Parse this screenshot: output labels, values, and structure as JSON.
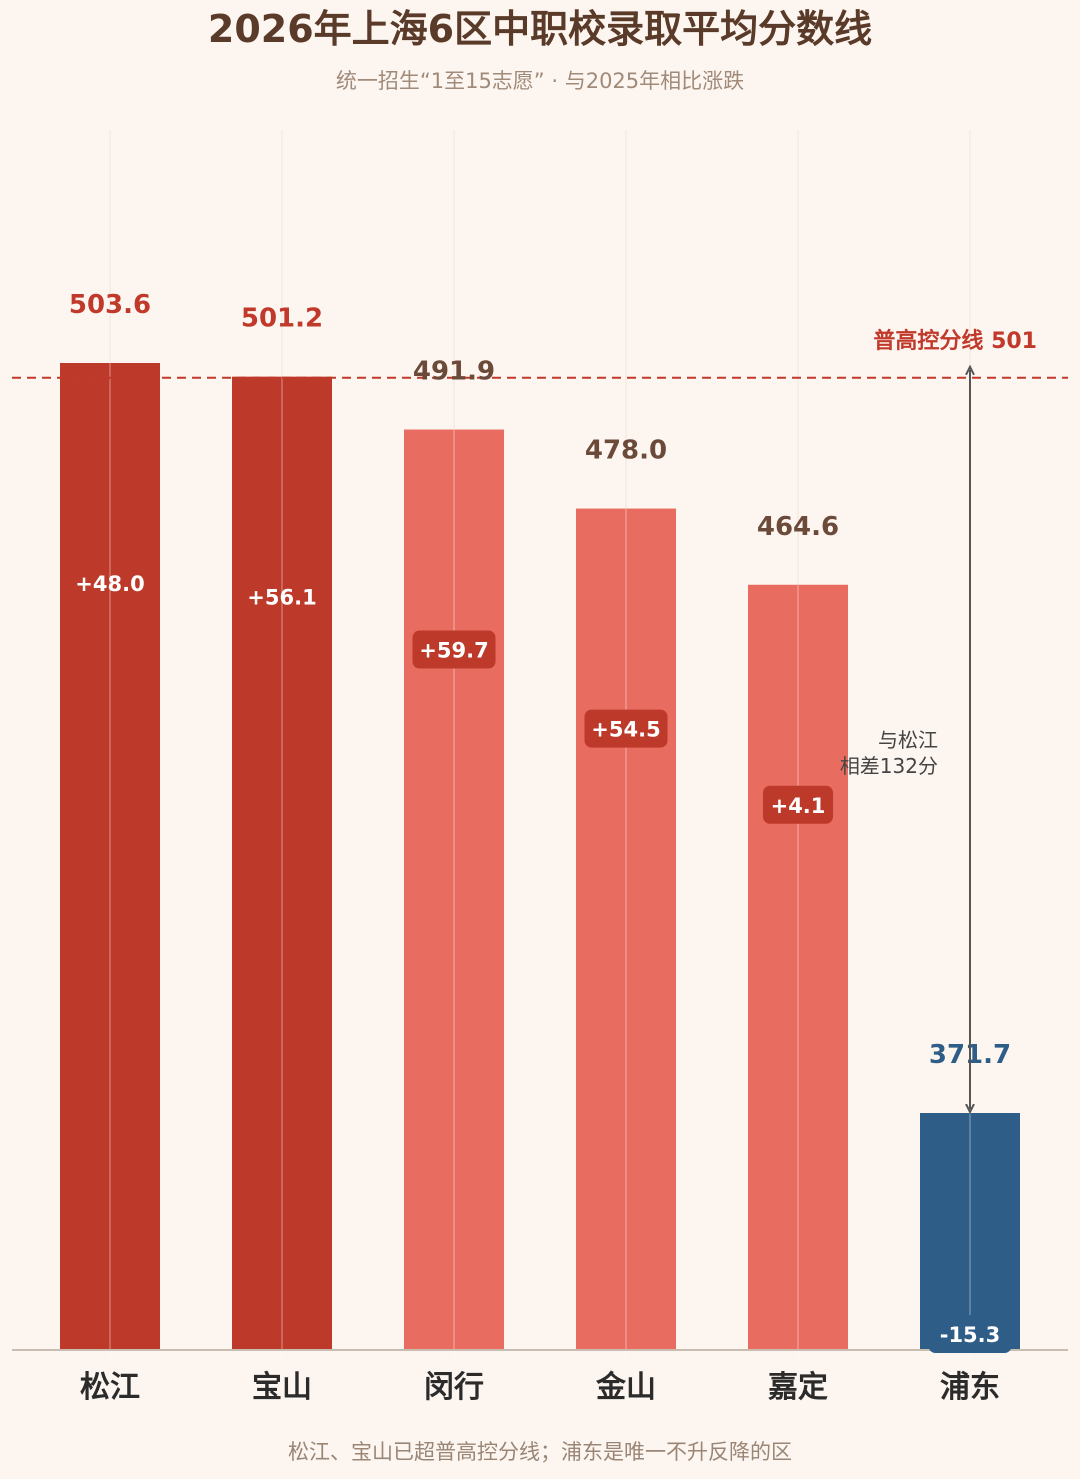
{
  "title": "2026年上海6区中职校录取平均分数线",
  "subtitle": "统一招生“1至15志愿” · 与2025年相比涨跌",
  "footer": "松江、宝山已超普高控分线；浦东是唯一不升反降的区",
  "colors": {
    "above_line": "#bd3a2b",
    "below_line": "#e86c5f",
    "decline": "#2e5d88",
    "reference_line": "#c0392b",
    "value_text": "#6b4a3a",
    "badge_bg": "#bd3a2b"
  },
  "chart_data": {
    "type": "bar",
    "categories": [
      "松江",
      "宝山",
      "闵行",
      "金山",
      "嘉定",
      "浦东"
    ],
    "values": [
      503.6,
      501.2,
      491.9,
      478.0,
      464.6,
      371.7
    ],
    "value_labels": [
      "503.6",
      "501.2",
      "491.9",
      "478.0",
      "464.6",
      "371.7"
    ],
    "change_labels": [
      "+48.0",
      "+56.1",
      "+59.7",
      "+54.5",
      "+4.1",
      "-15.3"
    ],
    "changes": [
      48.0,
      56.1,
      59.7,
      54.5,
      4.1,
      -15.3
    ],
    "reference_line": {
      "value": 501,
      "label": "普高控分线 501"
    },
    "gap_annotation": {
      "from": "松江",
      "to": "浦东",
      "line1": "与松江",
      "line2": "相差132分"
    },
    "title": "2026年上海6区中职校录取平均分数线",
    "subtitle": "统一招生“1至15志愿” · 与2025年相比涨跌",
    "xlabel": "",
    "ylabel": "",
    "grid": "vertical"
  }
}
